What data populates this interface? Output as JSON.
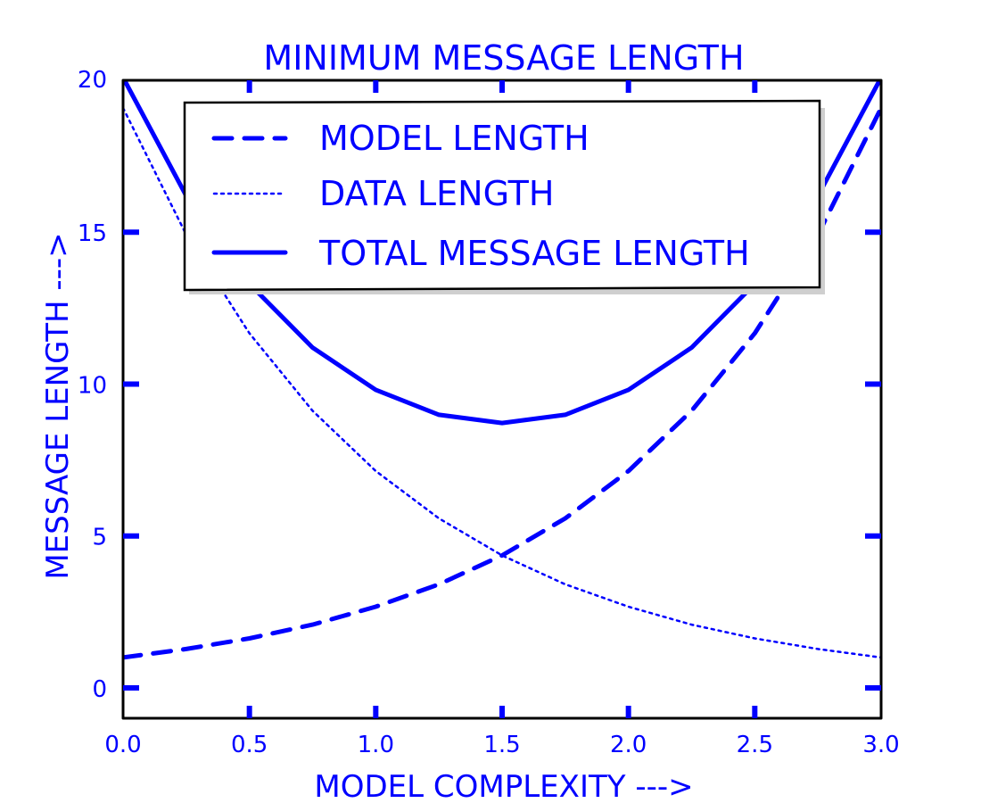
{
  "chart_data": {
    "type": "line",
    "title": "MINIMUM MESSAGE LENGTH",
    "xlabel": "MODEL COMPLEXITY --->",
    "ylabel": "MESSAGE LENGTH --->",
    "xlim": [
      0,
      3
    ],
    "ylim": [
      -1,
      20
    ],
    "xticks": [
      "0.0",
      "0.5",
      "1.0",
      "1.5",
      "2.0",
      "2.5",
      "3.0"
    ],
    "yticks": [
      "0",
      "5",
      "10",
      "15",
      "20"
    ],
    "grid": false,
    "legend": "top-center",
    "color": "#0000ff",
    "x": [
      0.0,
      0.25,
      0.5,
      0.75,
      1.0,
      1.25,
      1.5,
      1.75,
      2.0,
      2.25,
      2.5,
      2.75,
      3.0
    ],
    "series": [
      {
        "name": "MODEL LENGTH",
        "style": "dashed",
        "values": [
          1.0,
          1.28,
          1.63,
          2.08,
          2.67,
          3.41,
          4.36,
          5.58,
          7.14,
          9.12,
          11.67,
          14.92,
          19.09
        ]
      },
      {
        "name": "DATA LENGTH",
        "style": "dotted",
        "values": [
          19.09,
          14.92,
          11.67,
          9.12,
          7.14,
          5.58,
          4.36,
          3.41,
          2.67,
          2.08,
          1.63,
          1.28,
          1.0
        ]
      },
      {
        "name": "TOTAL MESSAGE LENGTH",
        "style": "solid",
        "values": [
          20.09,
          16.2,
          13.3,
          11.2,
          9.81,
          8.99,
          8.72,
          8.99,
          9.81,
          11.2,
          13.3,
          16.2,
          20.09
        ]
      }
    ]
  }
}
